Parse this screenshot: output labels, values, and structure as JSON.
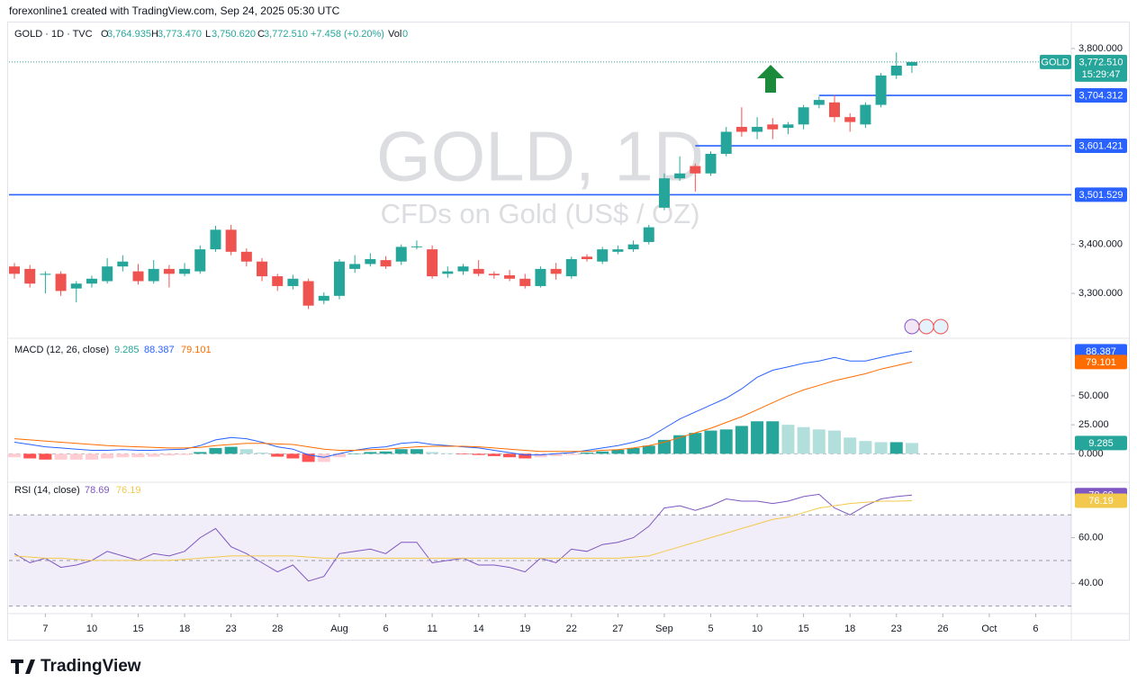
{
  "header": {
    "credit": "forexonline1 created with TradingView.com, Sep 24, 2025 05:30 UTC",
    "logo": "TradingView"
  },
  "chart_data": [
    {
      "type": "candlestick",
      "symbol": "GOLD · 1D · TVC",
      "ohlc_keys": [
        "O",
        "H",
        "L",
        "C"
      ],
      "ohlc": [
        {
          "value": 3764.935,
          "label": "3,764.935"
        },
        {
          "value": 3773.47,
          "label": "3,773.470"
        },
        {
          "value": 3750.62,
          "label": "3,750.620"
        },
        {
          "value": 3772.51,
          "label": "3,772.510"
        }
      ],
      "change": "+7.458 (+0.20%)",
      "volume_key": "Vol",
      "volume": 0,
      "watermark": "GOLD, 1D",
      "watermark_subtitle": "CFDs on Gold (US$ / OZ)",
      "symbol_tag": "GOLD",
      "last_price_label": "3,772.510",
      "countdown": "15:29:47",
      "up_color": "#26a69a",
      "down_color": "#ef5350",
      "x": [
        0,
        1,
        2,
        3,
        4,
        5,
        6,
        7,
        8,
        9,
        10,
        11,
        12,
        13,
        14,
        15,
        16,
        17,
        18,
        19,
        20,
        21,
        22,
        23,
        24,
        25,
        26,
        27,
        28,
        29,
        30,
        31,
        32,
        33,
        34,
        35,
        36,
        37,
        38,
        39,
        40,
        41,
        42,
        43,
        44,
        45,
        46,
        47,
        48,
        49,
        50,
        51,
        52,
        53,
        54,
        55,
        56,
        57,
        58
      ],
      "open": [
        3355,
        3350,
        3338,
        3340,
        3310,
        3320,
        3325,
        3355,
        3345,
        3325,
        3350,
        3340,
        3345,
        3390,
        3430,
        3385,
        3365,
        3335,
        3315,
        3325,
        3285,
        3295,
        3350,
        3360,
        3368,
        3365,
        3395,
        3390,
        3340,
        3345,
        3350,
        3340,
        3337,
        3330,
        3315,
        3350,
        3335,
        3375,
        3365,
        3385,
        3390,
        3405,
        3475,
        3535,
        3560,
        3545,
        3585,
        3640,
        3630,
        3645,
        3638,
        3645,
        3685,
        3690,
        3660,
        3645,
        3685,
        3745,
        3764.935
      ],
      "high": [
        3362,
        3358,
        3345,
        3345,
        3325,
        3336,
        3372,
        3378,
        3360,
        3368,
        3358,
        3362,
        3398,
        3438,
        3440,
        3392,
        3372,
        3340,
        3338,
        3330,
        3302,
        3370,
        3378,
        3382,
        3376,
        3400,
        3408,
        3398,
        3355,
        3360,
        3368,
        3345,
        3348,
        3340,
        3355,
        3362,
        3375,
        3380,
        3395,
        3398,
        3408,
        3440,
        3545,
        3580,
        3565,
        3590,
        3640,
        3680,
        3660,
        3658,
        3650,
        3685,
        3702,
        3705,
        3668,
        3690,
        3750,
        3792,
        3773.47
      ],
      "low": [
        3330,
        3312,
        3300,
        3295,
        3282,
        3312,
        3320,
        3345,
        3318,
        3320,
        3312,
        3335,
        3340,
        3385,
        3378,
        3355,
        3325,
        3305,
        3308,
        3268,
        3278,
        3288,
        3342,
        3355,
        3350,
        3358,
        3390,
        3330,
        3332,
        3338,
        3335,
        3330,
        3325,
        3310,
        3312,
        3328,
        3330,
        3365,
        3360,
        3380,
        3385,
        3400,
        3470,
        3530,
        3508,
        3540,
        3580,
        3620,
        3615,
        3615,
        3625,
        3635,
        3678,
        3650,
        3630,
        3638,
        3680,
        3738,
        3750.62
      ],
      "close": [
        3340,
        3320,
        3340,
        3305,
        3320,
        3330,
        3355,
        3365,
        3325,
        3350,
        3340,
        3350,
        3390,
        3430,
        3385,
        3365,
        3335,
        3315,
        3330,
        3275,
        3295,
        3365,
        3360,
        3370,
        3355,
        3395,
        3396,
        3335,
        3345,
        3355,
        3340,
        3337,
        3330,
        3315,
        3350,
        3340,
        3370,
        3370,
        3390,
        3390,
        3400,
        3435,
        3535,
        3545,
        3545,
        3585,
        3630,
        3630,
        3640,
        3635,
        3645,
        3680,
        3695,
        3660,
        3650,
        3685,
        3745,
        3765,
        3772.51
      ],
      "xlim": [
        -0.35,
        68.3
      ],
      "xticks": [
        {
          "value": 2,
          "label": "7"
        },
        {
          "value": 5,
          "label": "10"
        },
        {
          "value": 8,
          "label": "15"
        },
        {
          "value": 11,
          "label": "18"
        },
        {
          "value": 14,
          "label": "23"
        },
        {
          "value": 17,
          "label": "28"
        },
        {
          "value": 21,
          "label": "Aug"
        },
        {
          "value": 24,
          "label": "6"
        },
        {
          "value": 27,
          "label": "11"
        },
        {
          "value": 30,
          "label": "14"
        },
        {
          "value": 33,
          "label": "19"
        },
        {
          "value": 36,
          "label": "22"
        },
        {
          "value": 39,
          "label": "27"
        },
        {
          "value": 42,
          "label": "Sep"
        },
        {
          "value": 45,
          "label": "5"
        },
        {
          "value": 48,
          "label": "10"
        },
        {
          "value": 51,
          "label": "15"
        },
        {
          "value": 54,
          "label": "18"
        },
        {
          "value": 57,
          "label": "23"
        },
        {
          "value": 60,
          "label": "26"
        },
        {
          "value": 63,
          "label": "Oct"
        },
        {
          "value": 66,
          "label": "6"
        }
      ],
      "ylim": [
        3212,
        3844
      ],
      "yticks": [
        {
          "value": 3300,
          "label": "3,300.000"
        },
        {
          "value": 3400,
          "label": "3,400.000"
        },
        {
          "value": 3800,
          "label": "3,800.000"
        }
      ],
      "levels": [
        {
          "value": 3704.312,
          "label": "3,704.312",
          "from_x": 52
        },
        {
          "value": 3601.421,
          "label": "3,601.421",
          "from_x": 44
        },
        {
          "value": 3501.529,
          "label": "3,501.529"
        }
      ],
      "level_color": "#2962ff"
    },
    {
      "type": "macd",
      "title": "MACD (12, 26, close)",
      "hist_colors": [
        "#26a69a",
        "#b2dfdb",
        "#ffcdd2",
        "#ff5252"
      ],
      "series": [
        {
          "style": "histogram",
          "color": "#26a69a",
          "values": [
            -3,
            -4,
            -5,
            -5,
            -5,
            -5,
            -4,
            -3,
            -3,
            -2.5,
            -1.5,
            -1,
            1.5,
            5,
            6,
            4,
            1,
            -2.5,
            -4,
            -7,
            -7,
            -3,
            0,
            1.5,
            2,
            4,
            4,
            1.5,
            0.5,
            -0.5,
            -1,
            -2,
            -3,
            -4,
            -3,
            -2,
            -1,
            1,
            2,
            3.5,
            5,
            7,
            12,
            16,
            18,
            20,
            21,
            24,
            28,
            28,
            25,
            23,
            21,
            20,
            14,
            11,
            10,
            10,
            9.285
          ]
        },
        {
          "style": "line",
          "color": "#2962ff",
          "values": [
            10,
            8,
            6,
            5,
            4,
            3,
            3,
            3.5,
            3,
            3,
            3.5,
            4,
            7,
            12,
            14,
            13,
            10,
            6,
            4,
            -1,
            -3,
            0,
            3,
            5,
            6,
            9,
            10,
            8,
            7,
            6,
            5,
            3,
            1,
            -1,
            -1,
            0,
            1,
            3,
            5,
            7,
            10,
            14,
            22,
            30,
            36,
            42,
            48,
            56,
            66,
            72,
            75,
            78,
            80,
            83,
            80,
            80,
            83,
            86,
            88.387
          ]
        },
        {
          "style": "line",
          "color": "#ff6d00",
          "values": [
            13,
            12,
            11,
            10,
            9,
            8,
            7,
            6.5,
            6,
            5.5,
            5,
            5,
            5.5,
            7,
            8,
            9,
            9,
            8.5,
            8,
            6,
            4,
            3,
            3,
            3.5,
            4,
            5,
            6,
            6.5,
            6.5,
            6.5,
            6,
            5,
            4,
            3,
            2,
            2,
            2,
            2,
            3,
            3.5,
            5,
            7,
            10,
            14,
            18,
            22,
            27,
            32,
            38,
            44,
            50,
            55,
            59,
            63,
            66,
            69,
            73,
            76,
            79.101
          ]
        }
      ],
      "ylim": [
        -23,
        98
      ],
      "yticks": [
        {
          "value": 0,
          "label": "0.000"
        },
        {
          "value": 25,
          "label": "25.000"
        },
        {
          "value": 50,
          "label": "50.000"
        }
      ]
    },
    {
      "type": "rsi",
      "title": "RSI (14, close)",
      "band": [
        30,
        70
      ],
      "middle": 50,
      "band_color": "#7e57c2",
      "series": [
        {
          "color": "#7e57c2",
          "values": [
            53,
            49,
            51,
            47,
            48,
            50,
            54,
            52,
            50,
            53,
            52,
            54,
            60,
            64,
            56,
            53,
            49,
            45,
            48,
            41,
            43,
            53,
            54,
            55,
            53,
            58,
            58,
            49,
            50,
            51,
            48,
            48,
            47,
            45,
            51,
            49,
            55,
            54,
            57,
            58,
            60,
            65,
            73,
            74,
            72,
            74,
            77,
            76,
            76,
            75,
            76,
            78,
            79,
            73,
            70,
            74,
            77,
            78,
            78.69
          ]
        },
        {
          "color": "#f2c94c",
          "values": [
            52,
            51.5,
            51,
            51,
            50.5,
            50,
            50,
            50,
            50,
            50,
            50,
            50.5,
            51,
            51.5,
            52,
            52,
            52,
            52,
            52,
            51.5,
            51,
            51,
            51,
            51,
            51,
            51,
            51,
            51,
            51,
            51,
            51,
            51,
            51,
            51,
            51,
            51,
            51,
            51,
            51,
            51,
            51.5,
            52,
            54,
            56,
            58,
            60,
            62,
            64,
            66,
            68,
            69,
            71,
            73,
            74,
            75,
            75.5,
            76,
            76,
            76.19
          ]
        }
      ],
      "ylim": [
        27.5,
        83.5
      ],
      "yticks": [
        {
          "value": 40,
          "label": "40.00"
        },
        {
          "value": 60,
          "label": "60.00"
        }
      ]
    }
  ]
}
